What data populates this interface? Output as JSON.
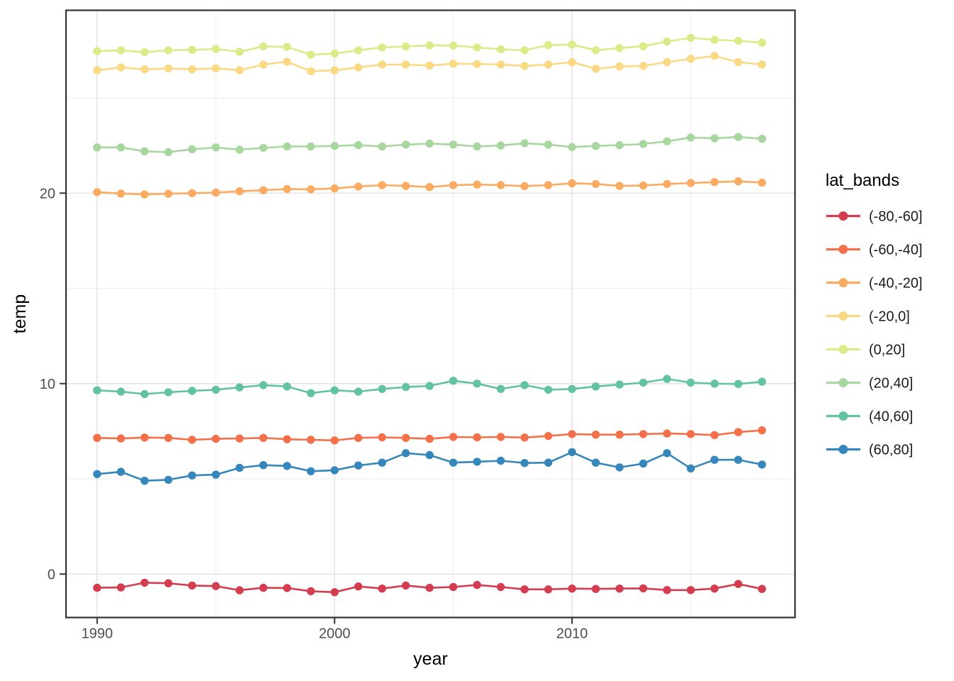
{
  "chart_data": {
    "type": "line",
    "title": "",
    "xlabel": "year",
    "ylabel": "temp",
    "legend_title": "lat_bands",
    "legend_position": "right",
    "grid": true,
    "xlim": [
      1988.69,
      2019.39
    ],
    "ylim": [
      -2.28,
      29.6
    ],
    "x_ticks": [
      1990,
      2000,
      2010
    ],
    "x_tick_labels": [
      "1990",
      "2000",
      "2010"
    ],
    "x_minor_ticks": [
      1995,
      2005,
      2015
    ],
    "y_ticks": [
      0,
      10,
      20
    ],
    "y_tick_labels": [
      "0",
      "10",
      "20"
    ],
    "y_minor_ticks": [
      5,
      15,
      25
    ],
    "x": [
      1990,
      1991,
      1992,
      1993,
      1994,
      1995,
      1996,
      1997,
      1998,
      1999,
      2000,
      2001,
      2002,
      2003,
      2004,
      2005,
      2006,
      2007,
      2008,
      2009,
      2010,
      2011,
      2012,
      2013,
      2014,
      2015,
      2016,
      2017,
      2018
    ],
    "series": [
      {
        "name": "(-80,-60]",
        "color": "#d33d4f",
        "values": [
          -0.72,
          -0.7,
          -0.45,
          -0.48,
          -0.6,
          -0.63,
          -0.85,
          -0.72,
          -0.73,
          -0.9,
          -0.95,
          -0.65,
          -0.76,
          -0.6,
          -0.72,
          -0.68,
          -0.57,
          -0.68,
          -0.8,
          -0.8,
          -0.76,
          -0.78,
          -0.76,
          -0.75,
          -0.84,
          -0.84,
          -0.76,
          -0.52,
          -0.78
        ]
      },
      {
        "name": "(-60,-40]",
        "color": "#f3704b",
        "values": [
          7.15,
          7.12,
          7.17,
          7.15,
          7.05,
          7.1,
          7.12,
          7.15,
          7.08,
          7.05,
          7.02,
          7.15,
          7.18,
          7.15,
          7.1,
          7.2,
          7.18,
          7.2,
          7.17,
          7.25,
          7.35,
          7.32,
          7.32,
          7.35,
          7.38,
          7.35,
          7.3,
          7.45,
          7.55
        ]
      },
      {
        "name": "(-40,-20]",
        "color": "#fbab61",
        "values": [
          20.05,
          19.98,
          19.93,
          19.97,
          20.0,
          20.03,
          20.1,
          20.15,
          20.22,
          20.2,
          20.25,
          20.35,
          20.42,
          20.38,
          20.32,
          20.42,
          20.45,
          20.42,
          20.37,
          20.42,
          20.52,
          20.48,
          20.38,
          20.4,
          20.48,
          20.53,
          20.58,
          20.62,
          20.55
        ]
      },
      {
        "name": "(-20,0]",
        "color": "#fad984",
        "values": [
          26.45,
          26.6,
          26.5,
          26.55,
          26.5,
          26.55,
          26.45,
          26.75,
          26.9,
          26.4,
          26.45,
          26.6,
          26.75,
          26.75,
          26.7,
          26.8,
          26.78,
          26.75,
          26.68,
          26.75,
          26.87,
          26.53,
          26.65,
          26.68,
          26.88,
          27.05,
          27.2,
          26.88,
          26.75
        ]
      },
      {
        "name": "(0,20]",
        "color": "#dcea89",
        "values": [
          27.45,
          27.5,
          27.4,
          27.5,
          27.52,
          27.57,
          27.42,
          27.7,
          27.68,
          27.27,
          27.33,
          27.5,
          27.65,
          27.7,
          27.76,
          27.75,
          27.65,
          27.55,
          27.5,
          27.77,
          27.8,
          27.5,
          27.62,
          27.71,
          27.96,
          28.15,
          28.05,
          28.0,
          27.9
        ]
      },
      {
        "name": "(20,40]",
        "color": "#a7d79f",
        "values": [
          22.4,
          22.4,
          22.2,
          22.15,
          22.3,
          22.4,
          22.28,
          22.38,
          22.45,
          22.45,
          22.48,
          22.52,
          22.45,
          22.55,
          22.6,
          22.55,
          22.45,
          22.5,
          22.62,
          22.55,
          22.42,
          22.48,
          22.52,
          22.58,
          22.72,
          22.92,
          22.88,
          22.95,
          22.85
        ]
      },
      {
        "name": "(40,60]",
        "color": "#62c3a3",
        "values": [
          9.65,
          9.58,
          9.45,
          9.55,
          9.62,
          9.68,
          9.8,
          9.92,
          9.85,
          9.5,
          9.65,
          9.58,
          9.72,
          9.82,
          9.88,
          10.15,
          10.0,
          9.72,
          9.92,
          9.68,
          9.72,
          9.85,
          9.95,
          10.05,
          10.25,
          10.05,
          10.0,
          9.98,
          10.1
        ]
      },
      {
        "name": "(60,80]",
        "color": "#3587bb",
        "values": [
          5.25,
          5.37,
          4.9,
          4.95,
          5.18,
          5.22,
          5.58,
          5.72,
          5.68,
          5.4,
          5.45,
          5.7,
          5.85,
          6.35,
          6.25,
          5.85,
          5.9,
          5.95,
          5.83,
          5.85,
          6.4,
          5.85,
          5.6,
          5.8,
          6.35,
          5.55,
          6.0,
          6.0,
          5.75
        ]
      }
    ],
    "style": {
      "panel_background": "#ffffff",
      "panel_border_color": "#333333",
      "grid_major_color": "#e4e4e4",
      "grid_minor_color": "#efefef",
      "tick_color": "#333333",
      "tick_label_color": "#4d4d4d",
      "point_radius": 5.7,
      "line_width": 2.6
    }
  }
}
